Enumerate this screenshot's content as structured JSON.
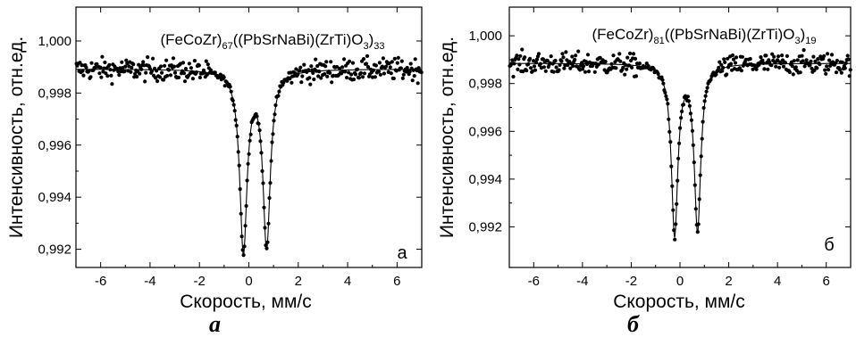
{
  "chart_data": [
    {
      "type": "scatter",
      "title": "(FeCoZr)67((PbSrNaBi)(ZrTi)O3)33",
      "title_parts": [
        {
          "t": "(FeCoZr)",
          "sub": false
        },
        {
          "t": "67",
          "sub": true
        },
        {
          "t": "((PbSrNaBi)(ZrTi)O",
          "sub": false
        },
        {
          "t": "3",
          "sub": true
        },
        {
          "t": ")",
          "sub": false
        },
        {
          "t": "33",
          "sub": true
        }
      ],
      "xlabel": "Скорость, мм/с",
      "ylabel": "Интенсивность, отн.ед.",
      "panel_letter": "a",
      "caption": "а",
      "xlim": [
        -7,
        7
      ],
      "ylim": [
        0.9913,
        1.0013
      ],
      "xticks": [
        -6,
        -4,
        -2,
        0,
        2,
        4,
        6
      ],
      "xtick_labels": [
        "-6",
        "-4",
        "-2",
        "0",
        "2",
        "4",
        "6"
      ],
      "yticks": [
        0.992,
        0.994,
        0.996,
        0.998,
        1.0
      ],
      "ytick_labels": [
        "0,992",
        "0,994",
        "0,996",
        "0,998",
        "1,000"
      ],
      "series": [
        {
          "kind": "points",
          "baseline": 0.99892,
          "scatter": 0.00042,
          "dips": [
            {
              "center": -0.22,
              "width": 0.36,
              "depth": 0.0069
            },
            {
              "center": 0.72,
              "width": 0.36,
              "depth": 0.0067
            }
          ]
        },
        {
          "kind": "fit",
          "baseline": 0.99892,
          "dips": [
            {
              "center": -0.22,
              "width": 0.36,
              "depth": 0.0069
            },
            {
              "center": 0.72,
              "width": 0.36,
              "depth": 0.0067
            }
          ]
        }
      ]
    },
    {
      "type": "scatter",
      "title": "(FeCoZr)81((PbSrNaBi)(ZrTi)O3)19",
      "title_parts": [
        {
          "t": "(FeCoZr)",
          "sub": false
        },
        {
          "t": "81",
          "sub": true
        },
        {
          "t": "((PbSrNaBi)(ZrTi)O",
          "sub": false
        },
        {
          "t": "3",
          "sub": true
        },
        {
          "t": ")",
          "sub": false
        },
        {
          "t": "19",
          "sub": true
        }
      ],
      "xlabel": "Скорость, мм/с",
      "ylabel": "Интенсивность, отн.ед.",
      "panel_letter": "б",
      "caption": "б",
      "xlim": [
        -7,
        7
      ],
      "ylim": [
        0.9903,
        1.0012
      ],
      "xticks": [
        -6,
        -4,
        -2,
        0,
        2,
        4,
        6
      ],
      "xtick_labels": [
        "-6",
        "-4",
        "-2",
        "0",
        "2",
        "4",
        "6"
      ],
      "yticks": [
        0.992,
        0.994,
        0.996,
        0.998,
        1.0
      ],
      "ytick_labels": [
        "0,992",
        "0,994",
        "0,996",
        "0,998",
        "1,000"
      ],
      "series": [
        {
          "kind": "points",
          "baseline": 0.99885,
          "scatter": 0.00045,
          "dips": [
            {
              "center": -0.22,
              "width": 0.32,
              "depth": 0.0071
            },
            {
              "center": 0.72,
              "width": 0.32,
              "depth": 0.0069
            }
          ]
        },
        {
          "kind": "fit",
          "baseline": 0.99885,
          "dips": [
            {
              "center": -0.22,
              "width": 0.32,
              "depth": 0.0071
            },
            {
              "center": 0.72,
              "width": 0.32,
              "depth": 0.0069
            }
          ]
        }
      ]
    }
  ]
}
